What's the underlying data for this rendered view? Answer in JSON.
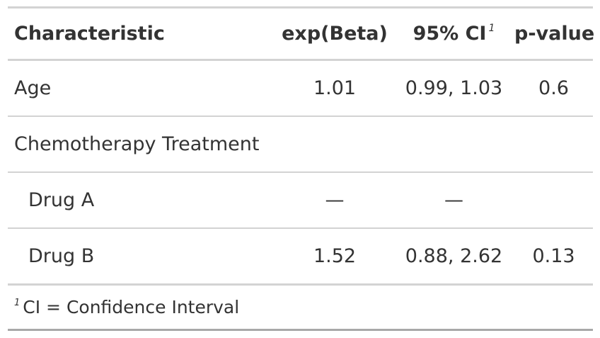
{
  "table": {
    "headers": {
      "characteristic": "Characteristic",
      "estimate": "exp(Beta)",
      "ci": "95% CI",
      "ci_footnote_mark": "1",
      "pvalue": "p-value"
    },
    "rows": [
      {
        "label": "Age",
        "estimate": "1.01",
        "ci": "0.99, 1.03",
        "pvalue": "0.6",
        "indent": false
      },
      {
        "label": "Chemotherapy Treatment",
        "estimate": "",
        "ci": "",
        "pvalue": "",
        "indent": false
      },
      {
        "label": "Drug A",
        "estimate": "—",
        "ci": "—",
        "pvalue": "",
        "indent": true
      },
      {
        "label": "Drug B",
        "estimate": "1.52",
        "ci": "0.88, 2.62",
        "pvalue": "0.13",
        "indent": true
      }
    ],
    "footnote": {
      "mark": "1",
      "text": "CI = Confidence Interval"
    }
  }
}
